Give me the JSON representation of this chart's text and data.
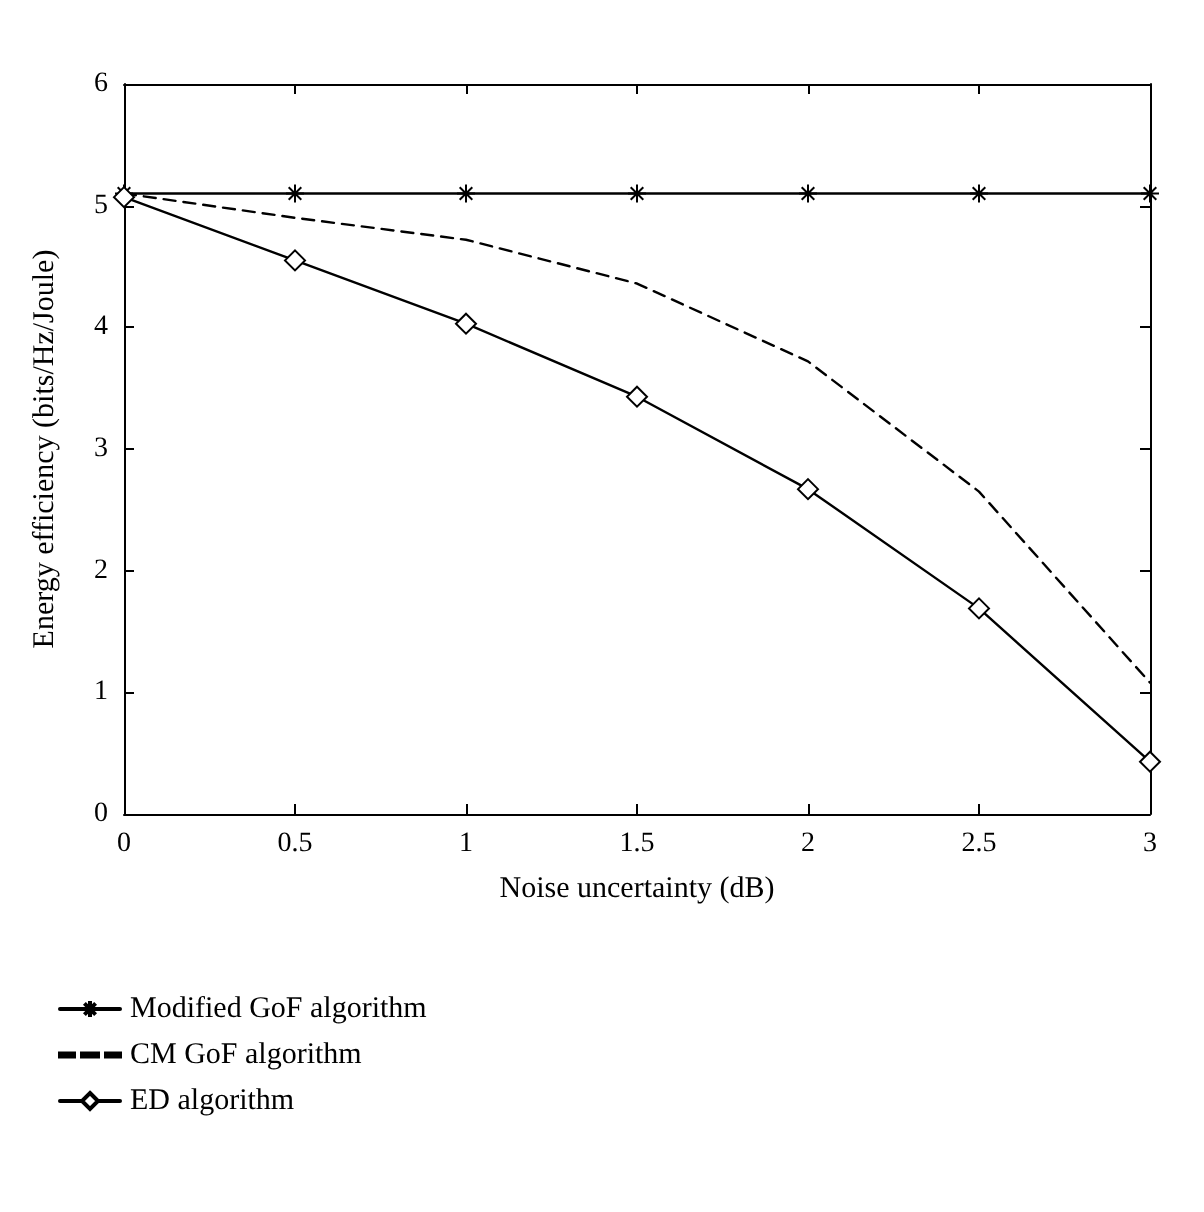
{
  "chart_data": {
    "type": "line",
    "x": [
      0,
      0.5,
      1,
      1.5,
      2,
      2.5,
      3
    ],
    "series": [
      {
        "name": "Modified GoF algorithm",
        "color": "#000000",
        "marker": "cross",
        "line_style": "solid",
        "values": [
          5.1,
          5.1,
          5.1,
          5.1,
          5.1,
          5.1,
          5.1
        ]
      },
      {
        "name": "CM GoF algorithm",
        "color": "#000000",
        "marker": "none",
        "line_style": "dashed",
        "values": [
          5.1,
          4.9,
          4.72,
          4.36,
          3.72,
          2.65,
          1.08
        ]
      },
      {
        "name": "ED algorithm",
        "color": "#000000",
        "marker": "diamond",
        "line_style": "solid",
        "values": [
          5.07,
          4.55,
          4.03,
          3.43,
          2.67,
          1.69,
          0.43
        ]
      }
    ],
    "xlabel": "Noise uncertainty (dB)",
    "ylabel": "Energy efficiency (bits/Hz/Joule)",
    "xlim": [
      0,
      3
    ],
    "xticks": [
      0,
      0.5,
      1,
      1.5,
      2,
      2.5,
      3
    ],
    "ylim": [
      0,
      6
    ],
    "yticks": [
      0,
      1,
      2,
      3,
      4,
      5,
      6
    ],
    "grid": false,
    "legend": "bottom left"
  }
}
